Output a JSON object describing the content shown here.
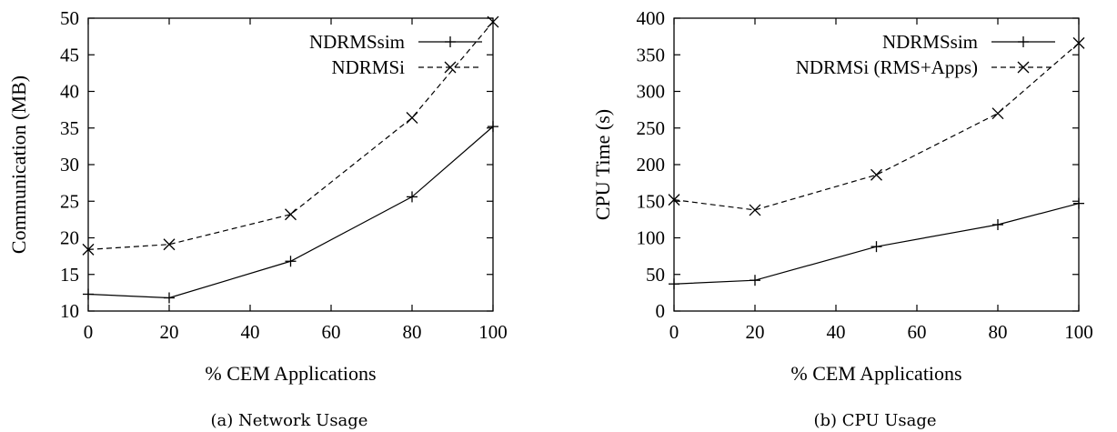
{
  "chart_data": [
    {
      "type": "line",
      "caption": "(a) Network Usage",
      "xlabel": "% CEM Applications",
      "ylabel": "Communication (MB)",
      "xlim": [
        0,
        100
      ],
      "ylim": [
        10,
        50
      ],
      "xticks": [
        0,
        20,
        40,
        60,
        80,
        100
      ],
      "yticks": [
        10,
        15,
        20,
        25,
        30,
        35,
        40,
        45,
        50
      ],
      "legend_position": "top-right",
      "grid": false,
      "series": [
        {
          "name": "NDRMSsim",
          "marker": "plus",
          "line": "solid",
          "x": [
            0,
            20,
            50,
            80,
            100
          ],
          "y": [
            12.3,
            11.8,
            16.8,
            25.6,
            35.2
          ]
        },
        {
          "name": "NDRMSi",
          "marker": "cross",
          "line": "dashed",
          "x": [
            0,
            20,
            50,
            80,
            100
          ],
          "y": [
            18.4,
            19.1,
            23.2,
            36.4,
            49.5
          ]
        }
      ]
    },
    {
      "type": "line",
      "caption": "(b) CPU Usage",
      "xlabel": "% CEM Applications",
      "ylabel": "CPU Time (s)",
      "xlim": [
        0,
        100
      ],
      "ylim": [
        0,
        400
      ],
      "xticks": [
        0,
        20,
        40,
        60,
        80,
        100
      ],
      "yticks": [
        0,
        50,
        100,
        150,
        200,
        250,
        300,
        350,
        400
      ],
      "legend_position": "top-right",
      "grid": false,
      "series": [
        {
          "name": "NDRMSsim",
          "marker": "plus",
          "line": "solid",
          "x": [
            0,
            20,
            50,
            80,
            100
          ],
          "y": [
            37,
            42,
            88,
            118,
            147
          ]
        },
        {
          "name": "NDRMSi (RMS+Apps)",
          "marker": "cross",
          "line": "dashed",
          "x": [
            0,
            20,
            50,
            80,
            100
          ],
          "y": [
            152,
            138,
            186,
            270,
            366
          ]
        }
      ]
    }
  ]
}
